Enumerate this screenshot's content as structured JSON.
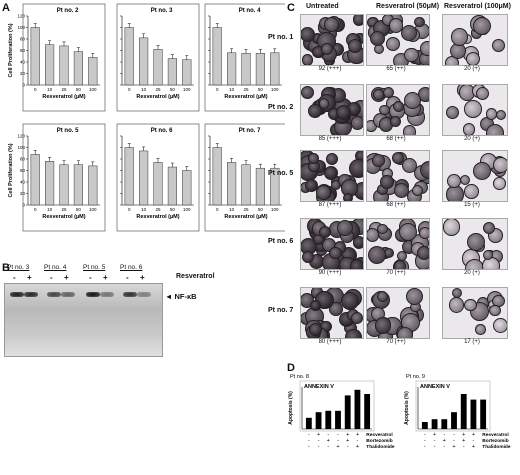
{
  "panel_letters": {
    "a": "A",
    "b": "B",
    "c": "C",
    "d": "D"
  },
  "panel_a": {
    "ylabel": "Cell Proliferation (%)",
    "xlabel": "Resveratrol (µM)",
    "doses": [
      "0",
      "10",
      "25",
      "50",
      "100"
    ],
    "yticks": [
      "0",
      "20",
      "40",
      "60",
      "80",
      "100",
      "120"
    ]
  },
  "chart_data": [
    {
      "type": "bar",
      "title": "Pt no. 2",
      "categories": [
        "0",
        "10",
        "25",
        "50",
        "100"
      ],
      "values": [
        100,
        70,
        68,
        58,
        48
      ],
      "xlabel": "Resveratrol (µM)",
      "ylabel": "Cell Proliferation (%)",
      "ylim": [
        0,
        120
      ]
    },
    {
      "type": "bar",
      "title": "Pt no. 3",
      "categories": [
        "0",
        "10",
        "25",
        "50",
        "100"
      ],
      "values": [
        100,
        82,
        62,
        46,
        44
      ],
      "xlabel": "Resveratrol (µM)",
      "ylabel": "",
      "ylim": [
        0,
        120
      ]
    },
    {
      "type": "bar",
      "title": "Pt no. 4",
      "categories": [
        "0",
        "10",
        "25",
        "50",
        "100"
      ],
      "values": [
        100,
        56,
        55,
        55,
        56
      ],
      "xlabel": "Resveratrol (µM)",
      "ylabel": "",
      "ylim": [
        0,
        120
      ]
    },
    {
      "type": "bar",
      "title": "Pt no. 5",
      "categories": [
        "0",
        "10",
        "25",
        "50",
        "100"
      ],
      "values": [
        88,
        76,
        70,
        70,
        68
      ],
      "xlabel": "Resveratrol (µM)",
      "ylabel": "Cell Proliferation (%)",
      "ylim": [
        0,
        120
      ]
    },
    {
      "type": "bar",
      "title": "Pt no. 6",
      "categories": [
        "0",
        "10",
        "25",
        "50",
        "100"
      ],
      "values": [
        100,
        94,
        74,
        66,
        60
      ],
      "xlabel": "Resveratrol (µM)",
      "ylabel": "",
      "ylim": [
        0,
        120
      ]
    },
    {
      "type": "bar",
      "title": "Pt no. 7",
      "categories": [
        "0",
        "10",
        "25",
        "50",
        "100"
      ],
      "values": [
        100,
        74,
        70,
        64,
        64
      ],
      "xlabel": "Resveratrol (µM)",
      "ylabel": "",
      "ylim": [
        0,
        120
      ]
    },
    {
      "type": "bar",
      "title": "Pt no. 8",
      "annotation": "ANNEXIN V",
      "categories": [
        "1",
        "2",
        "3",
        "4",
        "5",
        "6",
        "7"
      ],
      "values": [
        8,
        12,
        13,
        13,
        24,
        28,
        25
      ],
      "ylabel": "Apoptosis (%)",
      "ylim": [
        0,
        30
      ]
    },
    {
      "type": "bar",
      "title": "Pt no. 9",
      "annotation": "ANNEXIN V",
      "categories": [
        "1",
        "2",
        "3",
        "4",
        "5",
        "6",
        "7"
      ],
      "values": [
        5,
        7,
        7,
        12,
        25,
        21,
        21
      ],
      "ylabel": "Apoptosis (%)",
      "ylim": [
        0,
        30
      ]
    }
  ],
  "panel_b": {
    "groups": [
      "Pt no. 3",
      "Pt no. 4",
      "Pt no. 5",
      "Pt no. 6"
    ],
    "signs": [
      "-",
      "+",
      "-",
      "+",
      "-",
      "+",
      "-",
      "+"
    ],
    "treatment": "Resveratrol",
    "band_label": "◄ NF-κB",
    "band_intensity": [
      0.9,
      0.85,
      0.7,
      0.55,
      0.95,
      0.45,
      0.8,
      0.4
    ]
  },
  "panel_c": {
    "columns": [
      "Untreated",
      "Resveratrol (50μM)",
      "Resveratrol (100μM)"
    ],
    "rows": [
      {
        "label": "Pt no. 1",
        "scores": [
          "92 (+++)",
          "65 (++)",
          "20 (+)"
        ]
      },
      {
        "label": "Pt no. 2",
        "scores": [
          "85 (+++)",
          "68 (++)",
          "20 (+)"
        ]
      },
      {
        "label": "Pt no. 5",
        "scores": [
          "87 (+++)",
          "68 (++)",
          "15 (+)"
        ]
      },
      {
        "label": "Pt no. 6",
        "scores": [
          "90 (+++)",
          "70 (++)",
          "20 (+)"
        ]
      },
      {
        "label": "Pt no. 7",
        "scores": [
          "80 (+++)",
          "70 (++)",
          "17 (+)"
        ]
      }
    ]
  },
  "panel_d": {
    "treatments": [
      "Resveratrol",
      "Bortezomib",
      "Thalidomide"
    ],
    "signs": [
      [
        "-",
        "+",
        "-",
        "-",
        "+",
        "+"
      ],
      [
        "-",
        "-",
        "+",
        "-",
        "+",
        "-"
      ],
      [
        "-",
        "-",
        "-",
        "+",
        "-",
        "+"
      ]
    ]
  }
}
